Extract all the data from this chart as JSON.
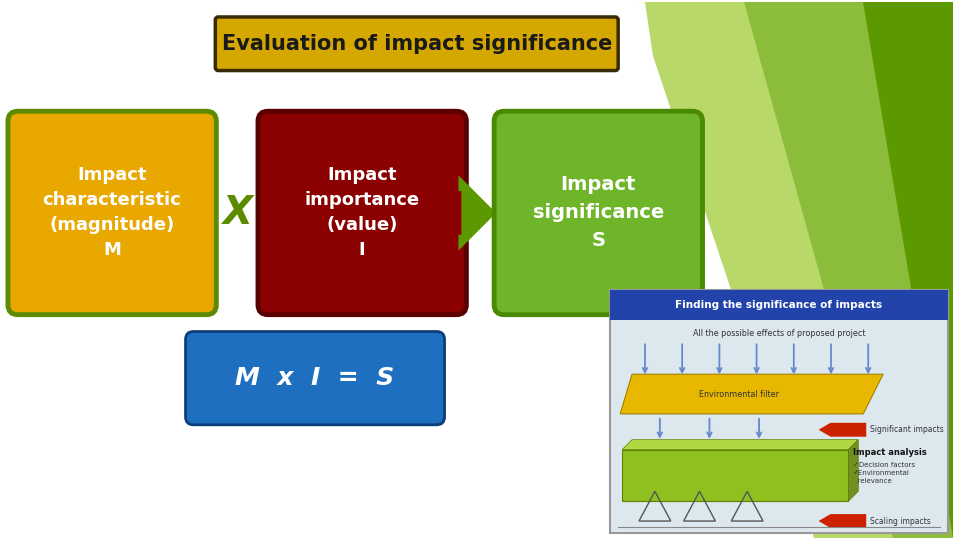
{
  "title": "Evaluation of impact significance",
  "title_box_color": "#D4A800",
  "title_border_color": "#3a2a00",
  "title_text_color": "#1a1a1a",
  "box1_text": "Impact\ncharacteristic\n(magnitude)\nM",
  "box1_color": "#E8A800",
  "box1_border": "#5C8A00",
  "box2_text": "Impact\nimportance\n(value)\nI",
  "box2_color": "#8B0000",
  "box2_border": "#5a0000",
  "box3_text": "Impact\nsignificance\nS",
  "box3_color": "#6EB52A",
  "box3_border": "#4a8a00",
  "multiply_symbol": "X",
  "multiply_color": "#5C8A00",
  "formula_text": "M  x  I  =  S",
  "formula_box_color": "#1E6FBF",
  "formula_box_border": "#0a3d7a",
  "formula_text_color": "#ffffff",
  "arrow_color": "#5C9900",
  "bg_color": "#ffffff",
  "tri_colors": [
    "#B8D96A",
    "#8CBD3A",
    "#5C9900"
  ],
  "inset_bg": "#dde8ee",
  "inset_title_bg": "#2244aa",
  "inset_title_text": "Finding the significance of impacts",
  "inset_sub_text": "All the possible effects of proposed project",
  "inset_filter_text": "Environmental filter",
  "inset_yellow": "#E8B800",
  "inset_green": "#90C020",
  "inset_arrow_color": "#6688cc",
  "inset_red_arrow": "#cc2200",
  "inset_sig_text": "Significant impacts",
  "inset_analysis_text": "Impact analysis",
  "inset_analysis_sub": "✓Decision factors\n✓Environmental\n  relevance",
  "inset_scale_text": "Scaling impacts"
}
